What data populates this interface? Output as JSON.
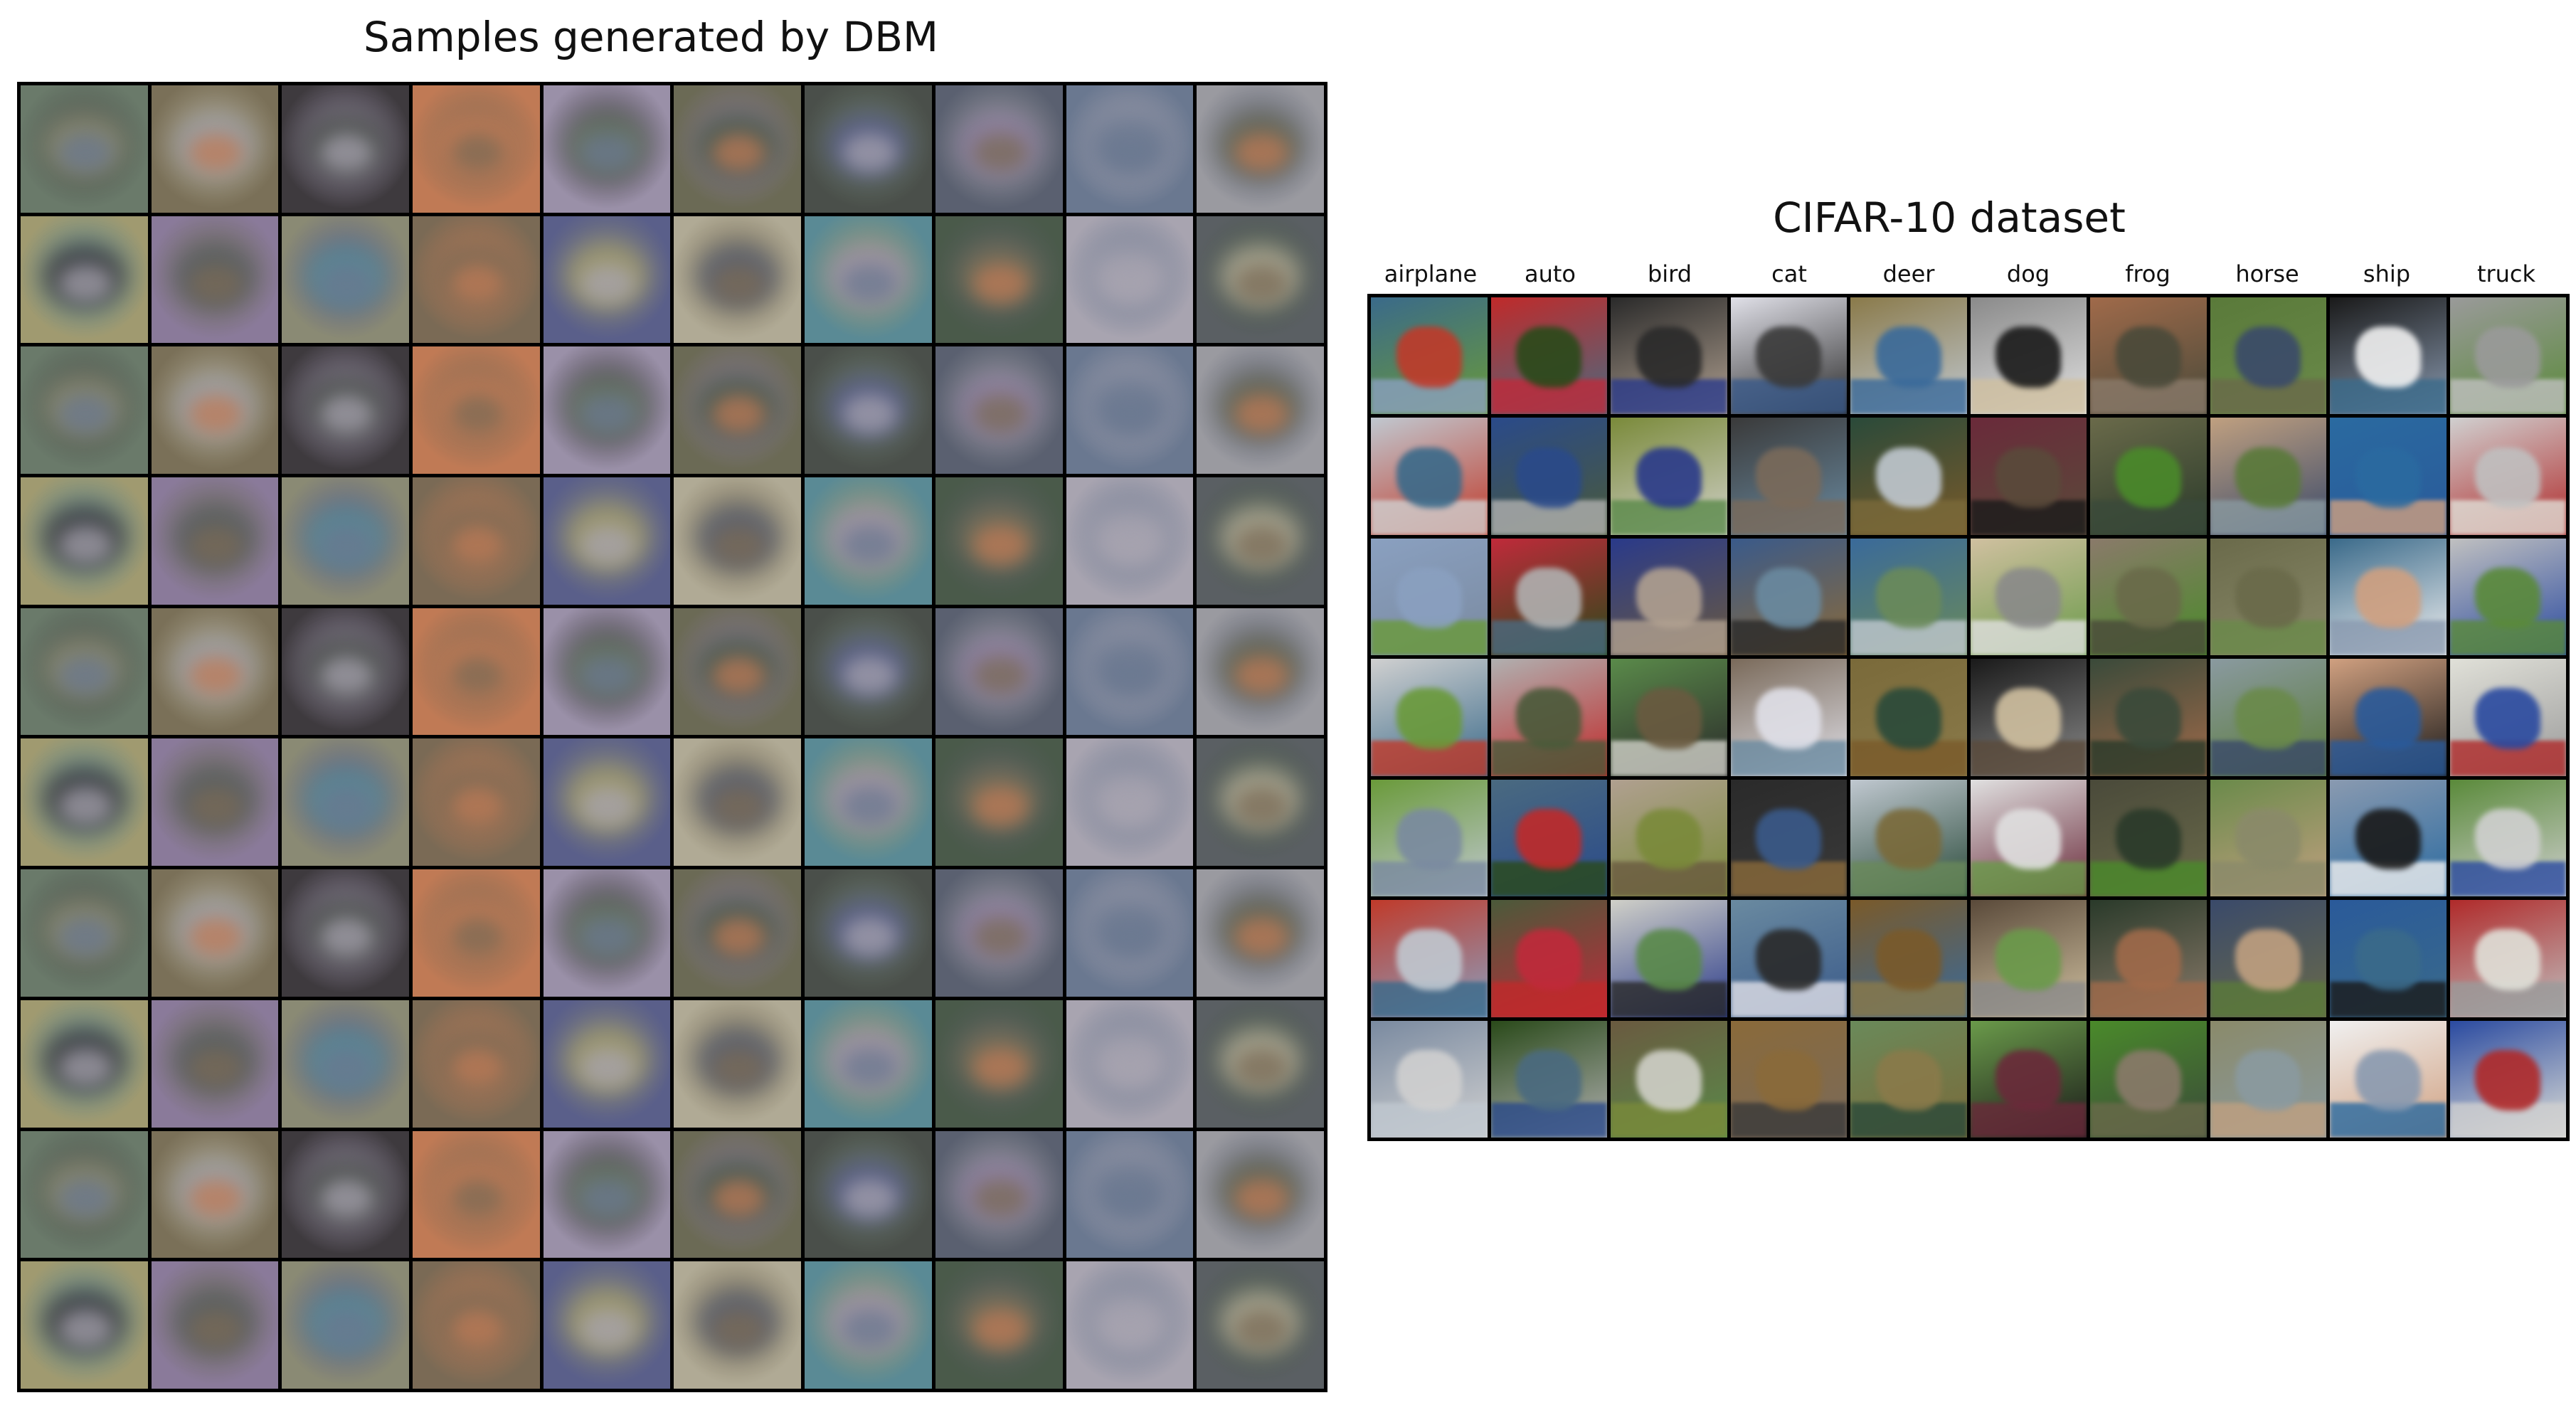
{
  "left_panel": {
    "title": "Samples generated by DBM",
    "rows": 10,
    "cols": 10,
    "palette": [
      "#6b6a55",
      "#8a8a74",
      "#5a5f63",
      "#4a4f4a",
      "#7a6a55",
      "#6a7a6a",
      "#5a6070",
      "#5a5f8a",
      "#7a7058",
      "#6a7890",
      "#b0aa95",
      "#3e3a3e",
      "#9a9aa0",
      "#5a8a95",
      "#c07a55",
      "#a09a70",
      "#4a5a4a",
      "#9a90a8",
      "#8a7a9a",
      "#a8a4b0"
    ]
  },
  "right_panel": {
    "title": "CIFAR-10 dataset",
    "classes": [
      "airplane",
      "auto",
      "bird",
      "cat",
      "deer",
      "dog",
      "frog",
      "horse",
      "ship",
      "truck"
    ],
    "rows": 7,
    "class_palettes": {
      "airplane": [
        "#6a9a3a",
        "#c03a2a",
        "#7a8aa0",
        "#3a6a8a",
        "#c0c8d0",
        "#8aa0c0",
        "#d0d0d0"
      ],
      "auto": [
        "#4a6a80",
        "#4a5a3a",
        "#2a4a1a",
        "#c02a2a",
        "#2a4a8a",
        "#c02a3a",
        "#b0b0b0"
      ],
      "bird": [
        "#b0a090",
        "#d0d0c8",
        "#6a5a40",
        "#2a2a2a",
        "#7a8a3a",
        "#2a3a8a",
        "#5a8a4a"
      ],
      "cat": [
        "#2a2a2a",
        "#6a8aa0",
        "#8a6a3a",
        "#e0e0e8",
        "#3a3a3a",
        "#3a5a8a",
        "#7a6a5a"
      ],
      "deer": [
        "#c0c8d0",
        "#7a5a2a",
        "#6a8a5a",
        "#8a7a4a",
        "#2a4a3a",
        "#3a6a9a",
        "#7a6a3a"
      ],
      "dog": [
        "#e0e0e0",
        "#5a4a3a",
        "#6a9a4a",
        "#8a8a8a",
        "#6a2a3a",
        "#d0c0a0",
        "#1a1a1a"
      ],
      "frog": [
        "#4a4a3a",
        "#2a3a2a",
        "#4a8a2a",
        "#a06a4a",
        "#6a6a4a",
        "#8a7a6a",
        "#3a4a3a"
      ],
      "horse": [
        "#6a8a4a",
        "#3a4a6a",
        "#8a8a6a",
        "#5a7a3a",
        "#c0a080",
        "#6a6a4a",
        "#8a9aa0"
      ],
      "ship": [
        "#8a9ab0",
        "#2a5a9a",
        "#f0f0f0",
        "#1a1a1a",
        "#2a6aa0",
        "#3a6a8a",
        "#d0a080"
      ],
      "truck": [
        "#5a8a3a",
        "#b02a2a",
        "#2a4aa0",
        "#9a9a9a",
        "#d0d0d0",
        "#c0c0c0",
        "#e0e0d8"
      ]
    }
  }
}
